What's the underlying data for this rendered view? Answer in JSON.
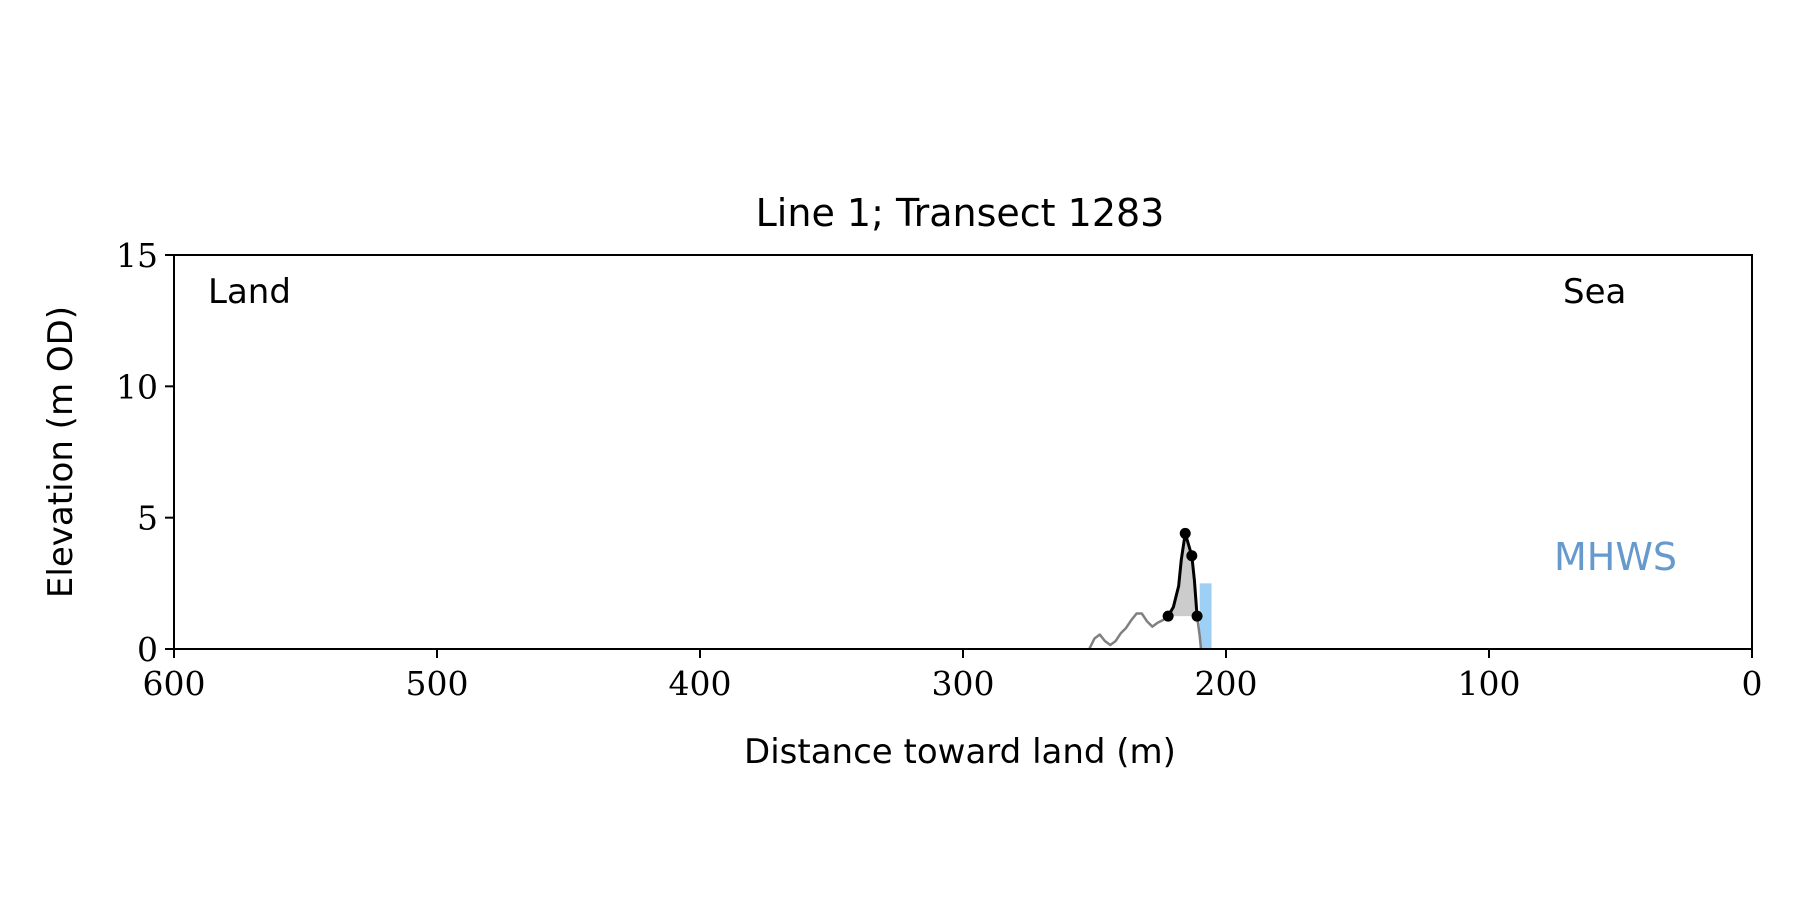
{
  "chart_data": {
    "type": "line",
    "title": "Line 1; Transect 1283",
    "xlabel": "Distance toward land (m)",
    "ylabel": "Elevation (m OD)",
    "xlim": [
      600,
      0
    ],
    "ylim": [
      0,
      15
    ],
    "x_ticks": [
      600,
      500,
      400,
      300,
      200,
      100,
      0
    ],
    "y_ticks": [
      0,
      5,
      10,
      15
    ],
    "grid": false,
    "annotations": {
      "land": "Land",
      "sea": "Sea",
      "mhws": "MHWS"
    },
    "colors": {
      "profile": "#808080",
      "dune": "#000000",
      "dune_fill": "#cccccc",
      "mhws_bar": "#9ecff5",
      "mhws_text": "#6699cc"
    },
    "series": [
      {
        "values": [
          [
            252,
            0.0
          ],
          [
            250,
            0.4
          ],
          [
            248,
            0.55
          ],
          [
            246,
            0.3
          ],
          [
            244,
            0.15
          ],
          [
            242,
            0.3
          ],
          [
            240,
            0.6
          ],
          [
            238,
            0.8
          ],
          [
            236,
            1.1
          ],
          [
            234,
            1.35
          ],
          [
            232,
            1.35
          ],
          [
            230,
            1.05
          ],
          [
            228,
            0.85
          ],
          [
            226,
            1.0
          ],
          [
            224,
            1.1
          ],
          [
            222,
            1.25
          ]
        ]
      },
      {
        "values": [
          [
            222,
            1.25
          ],
          [
            220,
            1.6
          ],
          [
            218,
            2.4
          ],
          [
            217,
            3.4
          ],
          [
            215.5,
            4.4
          ],
          [
            213,
            3.55
          ],
          [
            212,
            2.6
          ],
          [
            211,
            1.25
          ]
        ]
      },
      {
        "values": [
          [
            211,
            1.25
          ],
          [
            210,
            0.5
          ],
          [
            209.5,
            0.0
          ]
        ]
      }
    ],
    "markers": [
      [
        222,
        1.25
      ],
      [
        215.5,
        4.4
      ],
      [
        213,
        3.55
      ],
      [
        211,
        1.25
      ]
    ],
    "mhws_bar": {
      "x0": 210,
      "x1": 205.5,
      "y0": 0,
      "y1": 2.5
    }
  }
}
